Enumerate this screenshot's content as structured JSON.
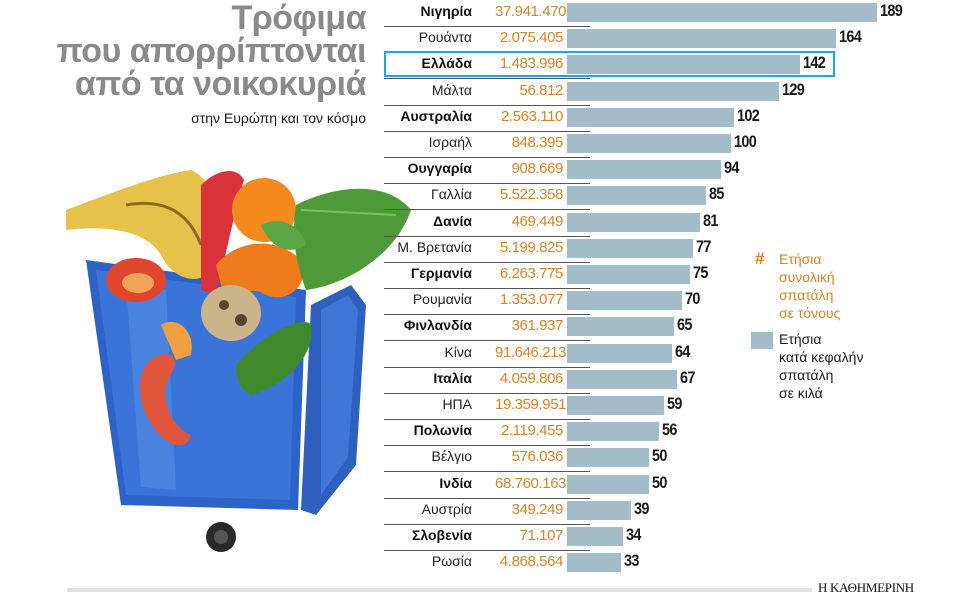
{
  "header": {
    "title_lines": [
      "Τρόφιμα",
      "που απορρίπτονται",
      "από τα νοικοκυριά"
    ],
    "subtitle": "στην Ευρώπη και τον κόσμο"
  },
  "legend": {
    "tons_symbol": "#",
    "tons_label_lines": [
      "Ετήσια",
      "συνολική",
      "σπατάλη",
      "σε τόνους"
    ],
    "per_capita_label_lines": [
      "Ετήσια",
      "κατά κεφαλήν",
      "σπατάλη",
      "σε κιλά"
    ]
  },
  "colors": {
    "bar": "#a3bcc8",
    "tons_text": "#d4832a",
    "highlight_border": "#1ea7e1",
    "title": "#8a8a8a"
  },
  "highlighted_country": "Ελλάδα",
  "source": "Η ΚΑΘΗΜΕΡΙΝΗ",
  "chart_data": {
    "type": "bar",
    "orientation": "horizontal",
    "title": "Τρόφιμα που απορρίπτονται από τα νοικοκυριά",
    "subtitle": "στην Ευρώπη και τον κόσμο",
    "xlabel": "Ετήσια κατά κεφαλήν σπατάλη σε κιλά",
    "ylabel": "",
    "xlim": [
      0,
      189
    ],
    "grid": false,
    "legend_position": "right",
    "categories": [
      "Νιγηρία",
      "Ρουάντα",
      "Ελλάδα",
      "Μάλτα",
      "Αυστραλία",
      "Ισραήλ",
      "Ουγγαρία",
      "Γαλλία",
      "Δανία",
      "Μ. Βρετανία",
      "Γερμανία",
      "Ρουμανία",
      "Φινλανδία",
      "Κίνα",
      "Ιταλία",
      "ΗΠΑ",
      "Πολωνία",
      "Βέλγιο",
      "Ινδία",
      "Αυστρία",
      "Σλοβενία",
      "Ρωσία"
    ],
    "series": [
      {
        "name": "Ετήσια κατά κεφαλήν σπατάλη σε κιλά",
        "values": [
          189,
          164,
          142,
          129,
          102,
          100,
          94,
          85,
          81,
          77,
          75,
          70,
          65,
          64,
          67,
          59,
          56,
          50,
          50,
          39,
          34,
          33
        ]
      },
      {
        "name": "Ετήσια συνολική σπατάλη σε τόνους",
        "values": [
          37941470,
          2075405,
          1483996,
          56812,
          2563110,
          848395,
          908669,
          5522358,
          469449,
          5199825,
          6263775,
          1353077,
          361937,
          91646213,
          4059806,
          19359951,
          2119455,
          576036,
          68760163,
          349249,
          71107,
          4868564
        ]
      }
    ]
  },
  "rows": [
    {
      "country": "Νιγηρία",
      "tons": "37.941.470",
      "kg": "189",
      "bold": true
    },
    {
      "country": "Ρουάντα",
      "tons": "2.075.405",
      "kg": "164",
      "bold": false
    },
    {
      "country": "Ελλάδα",
      "tons": "1.483.996",
      "kg": "142",
      "bold": true
    },
    {
      "country": "Μάλτα",
      "tons": "56.812",
      "kg": "129",
      "bold": false
    },
    {
      "country": "Αυστραλία",
      "tons": "2.563.110",
      "kg": "102",
      "bold": true
    },
    {
      "country": "Ισραήλ",
      "tons": "848.395",
      "kg": "100",
      "bold": false
    },
    {
      "country": "Ουγγαρία",
      "tons": "908.669",
      "kg": "94",
      "bold": true
    },
    {
      "country": "Γαλλία",
      "tons": "5.522.358",
      "kg": "85",
      "bold": false
    },
    {
      "country": "Δανία",
      "tons": "469.449",
      "kg": "81",
      "bold": true
    },
    {
      "country": "Μ. Βρετανία",
      "tons": "5.199.825",
      "kg": "77",
      "bold": false
    },
    {
      "country": "Γερμανία",
      "tons": "6.263.775",
      "kg": "75",
      "bold": true
    },
    {
      "country": "Ρουμανία",
      "tons": "1.353.077",
      "kg": "70",
      "bold": false
    },
    {
      "country": "Φινλανδία",
      "tons": "361.937",
      "kg": "65",
      "bold": true
    },
    {
      "country": "Κίνα",
      "tons": "91.646.213",
      "kg": "64",
      "bold": false
    },
    {
      "country": "Ιταλία",
      "tons": "4.059.806",
      "kg": "67",
      "bold": true
    },
    {
      "country": "ΗΠΑ",
      "tons": "19.359.951",
      "kg": "59",
      "bold": false
    },
    {
      "country": "Πολωνία",
      "tons": "2.119.455",
      "kg": "56",
      "bold": true
    },
    {
      "country": "Βέλγιο",
      "tons": "576.036",
      "kg": "50",
      "bold": false
    },
    {
      "country": "Ινδία",
      "tons": "68.760.163",
      "kg": "50",
      "bold": true
    },
    {
      "country": "Αυστρία",
      "tons": "349.249",
      "kg": "39",
      "bold": false
    },
    {
      "country": "Σλοβενία",
      "tons": "71.107",
      "kg": "34",
      "bold": true
    },
    {
      "country": "Ρωσία",
      "tons": "4.868.564",
      "kg": "33",
      "bold": false
    }
  ]
}
